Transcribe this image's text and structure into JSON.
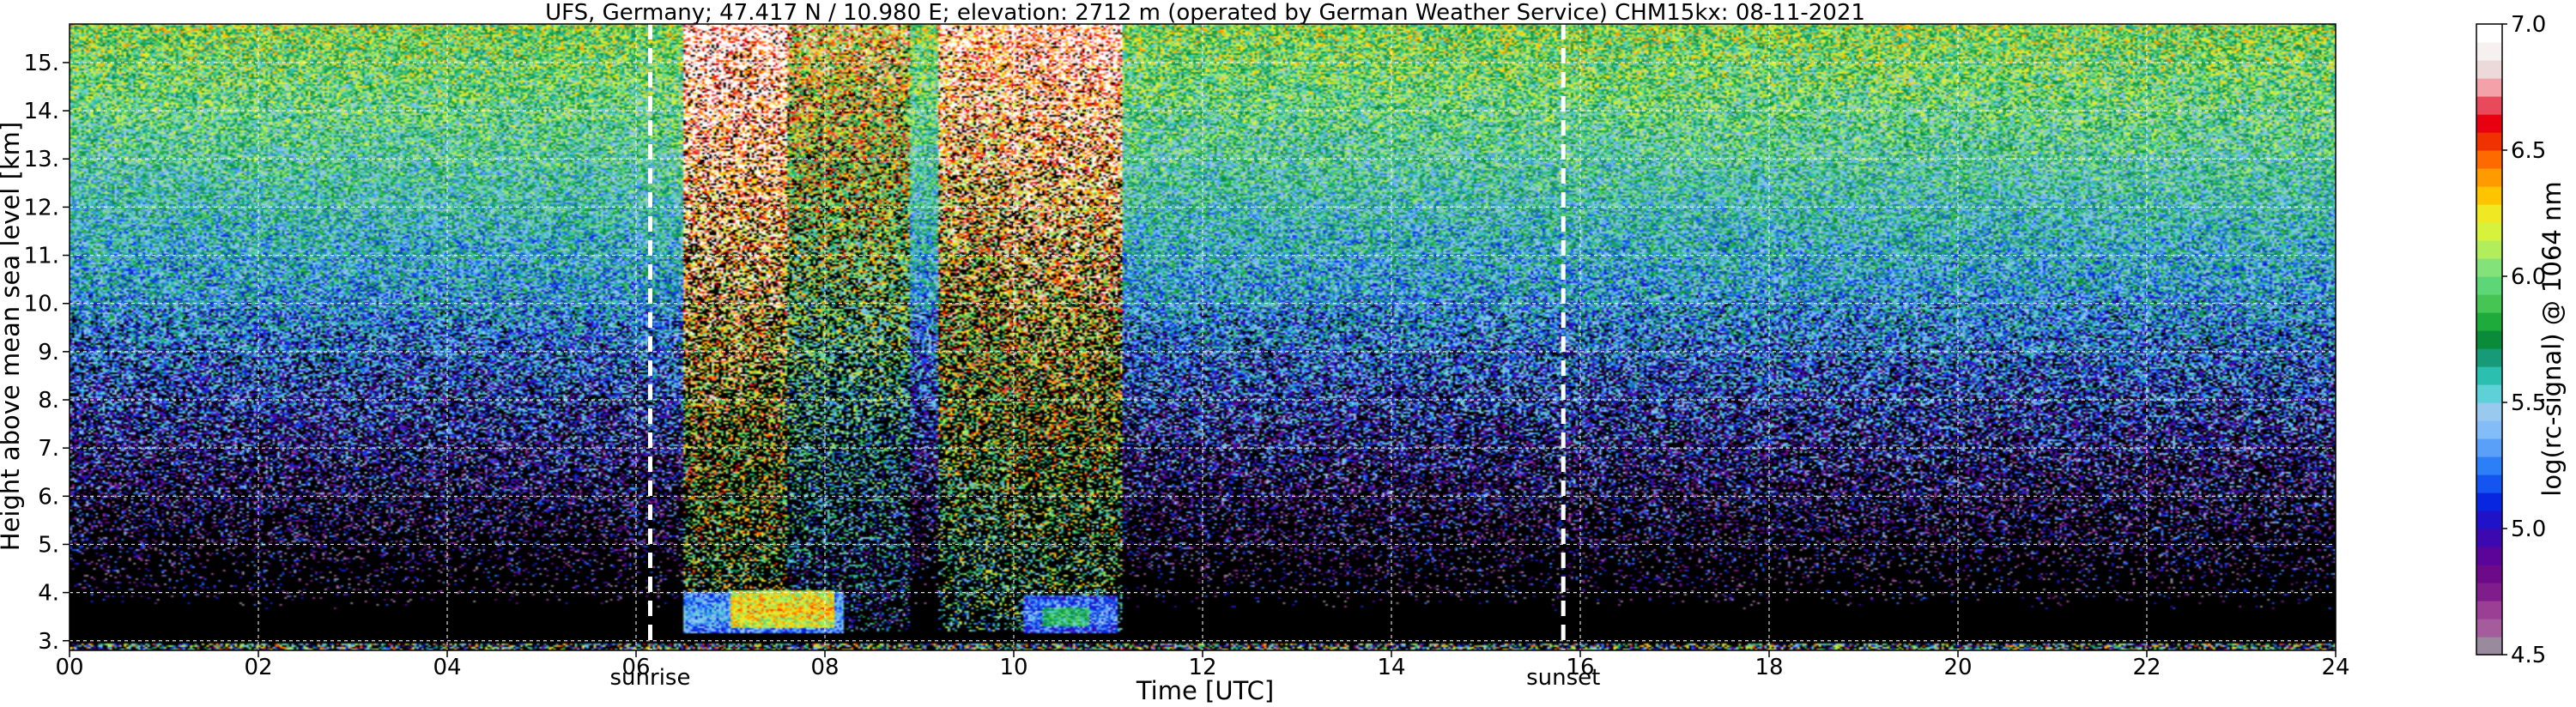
{
  "chart_data": {
    "type": "heatmap",
    "title": "UFS, Germany; 47.417 N / 10.980 E; elevation: 2712 m  (operated by German Weather Service)    CHM15kx: 08-11-2021",
    "xlabel": "Time [UTC]",
    "ylabel": "Height above mean sea level [km]",
    "xlim": [
      0,
      24
    ],
    "ylim": [
      2.8,
      15.8
    ],
    "x_ticks": [
      "00",
      "02",
      "04",
      "06",
      "08",
      "10",
      "12",
      "14",
      "16",
      "18",
      "20",
      "22",
      "24"
    ],
    "y_ticks": [
      "3.",
      "4.",
      "5.",
      "6.",
      "7.",
      "8.",
      "9.",
      "10.",
      "11.",
      "12.",
      "13.",
      "14.",
      "15."
    ],
    "grid": true,
    "colorbar": {
      "label": "log(rc-signal) @ 1064 nm",
      "range": [
        4.5,
        7.0
      ],
      "ticks": [
        "4.5",
        "5.0",
        "5.5",
        "6.0",
        "6.5",
        "7.0"
      ],
      "colors": [
        "#9a8a9e",
        "#a45c9c",
        "#9a3f94",
        "#7f1d8c",
        "#6c0a8a",
        "#5a049a",
        "#3c08b0",
        "#1f12c8",
        "#0826e0",
        "#1454f0",
        "#2c7ff6",
        "#5a9ff8",
        "#83bcf6",
        "#9ac9f0",
        "#5ed0d8",
        "#2bbfb0",
        "#169a78",
        "#0a8b3a",
        "#1faa3c",
        "#46c454",
        "#5cd676",
        "#84e27a",
        "#b2ee5c",
        "#d6f23c",
        "#f0e822",
        "#ffc400",
        "#ff9a00",
        "#ff6a00",
        "#f03200",
        "#e80010",
        "#e84a5c",
        "#f2a2a8",
        "#ecdada",
        "#f6f0f0",
        "#ffffff"
      ]
    },
    "markers": [
      {
        "label": "sunrise",
        "x": 6.15
      },
      {
        "label": "sunset",
        "x": 15.82
      }
    ],
    "cloud_layers": [
      {
        "x_start": 7.0,
        "x_end": 8.1,
        "y_bottom": 3.25,
        "y_top": 4.05,
        "level": 6.3
      },
      {
        "x_start": 6.5,
        "x_end": 8.2,
        "y_bottom": 3.15,
        "y_top": 4.0,
        "level": 5.4
      },
      {
        "x_start": 10.1,
        "x_end": 11.1,
        "y_bottom": 3.15,
        "y_top": 3.95,
        "level": 5.3
      },
      {
        "x_start": 10.3,
        "x_end": 10.8,
        "y_bottom": 3.3,
        "y_top": 3.7,
        "level": 5.8
      }
    ],
    "precip_columns": [
      {
        "x_start": 6.5,
        "x_end": 7.6,
        "level": 7.0
      },
      {
        "x_start": 7.6,
        "x_end": 8.9,
        "level": 6.4
      },
      {
        "x_start": 9.2,
        "x_end": 9.9,
        "level": 6.8
      },
      {
        "x_start": 9.9,
        "x_end": 11.15,
        "level": 6.9
      }
    ]
  }
}
